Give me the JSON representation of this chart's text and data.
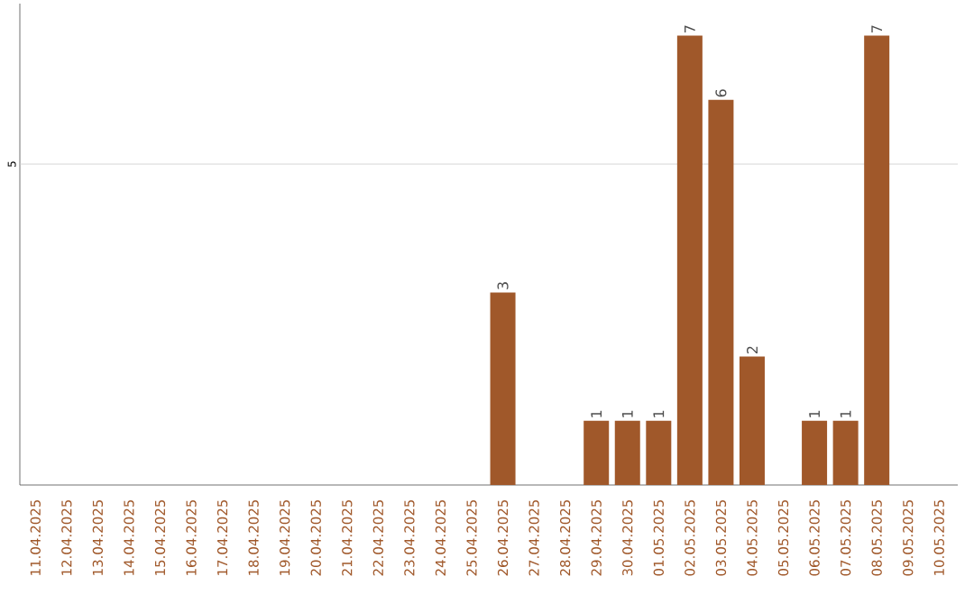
{
  "chart_data": {
    "type": "bar",
    "categories": [
      "11.04.2025",
      "12.04.2025",
      "13.04.2025",
      "14.04.2025",
      "15.04.2025",
      "16.04.2025",
      "17.04.2025",
      "18.04.2025",
      "19.04.2025",
      "20.04.2025",
      "21.04.2025",
      "22.04.2025",
      "23.04.2025",
      "24.04.2025",
      "25.04.2025",
      "26.04.2025",
      "27.04.2025",
      "28.04.2025",
      "29.04.2025",
      "30.04.2025",
      "01.05.2025",
      "02.05.2025",
      "03.05.2025",
      "04.05.2025",
      "05.05.2025",
      "06.05.2025",
      "07.05.2025",
      "08.05.2025",
      "09.05.2025",
      "10.05.2025"
    ],
    "values": [
      null,
      null,
      null,
      null,
      null,
      null,
      null,
      null,
      null,
      null,
      null,
      null,
      null,
      null,
      null,
      3,
      null,
      null,
      1,
      1,
      1,
      7,
      6,
      2,
      null,
      1,
      1,
      7,
      null,
      null
    ],
    "data_labels": true,
    "color": "#a0582a",
    "ylim": [
      0,
      7.5
    ],
    "ref_lines": [
      {
        "axis": "y",
        "value": 5,
        "label": "5",
        "color": "#cccccc"
      }
    ]
  }
}
